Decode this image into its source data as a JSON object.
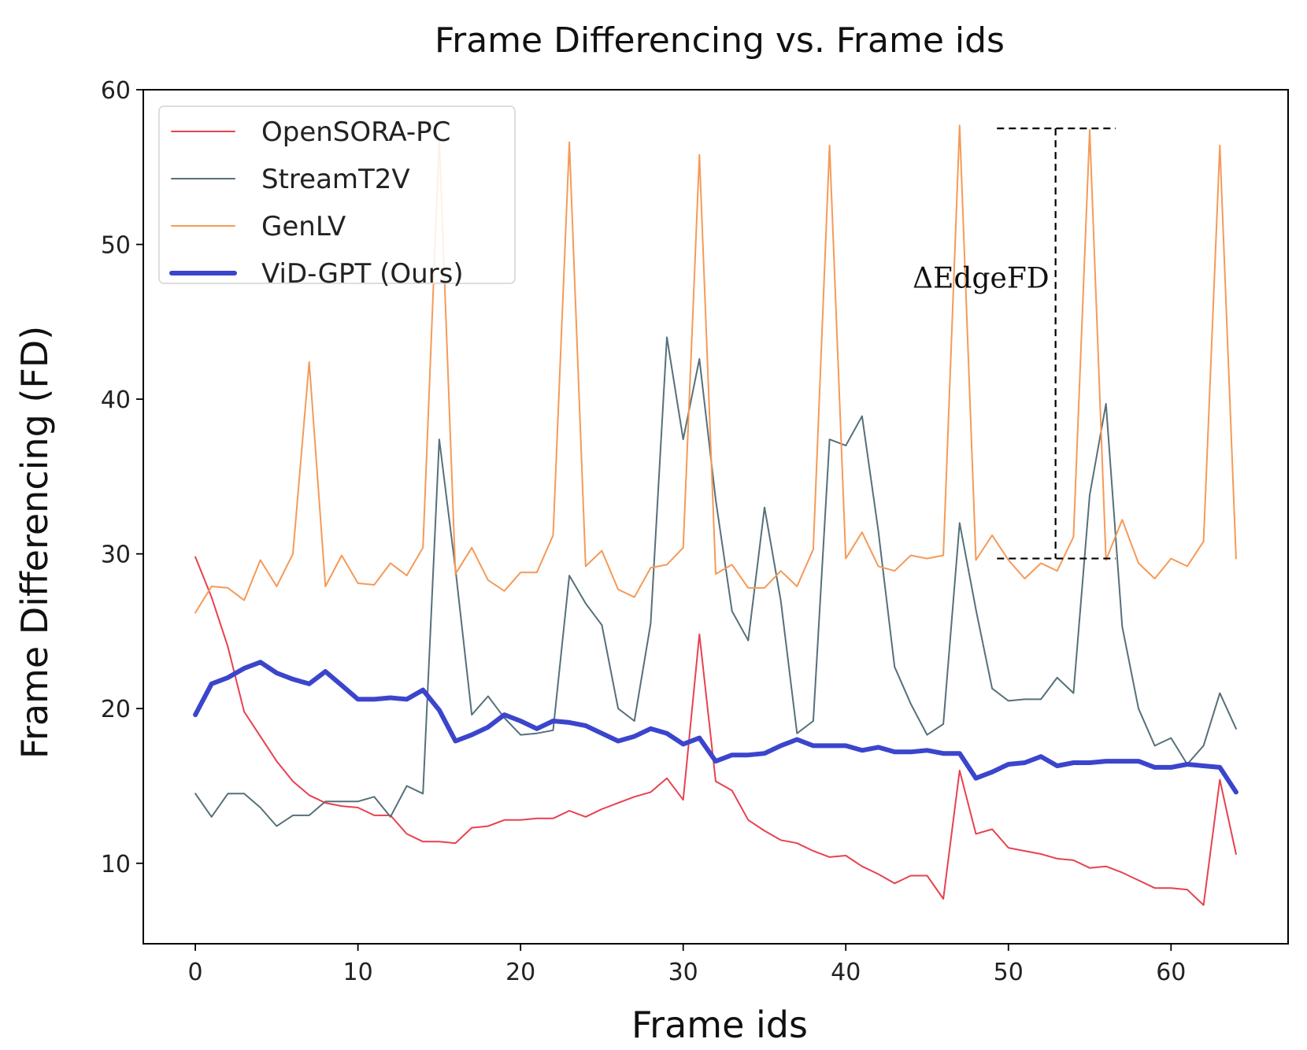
{
  "chart_data": {
    "type": "line",
    "title": "Frame Differencing vs. Frame ids",
    "xlabel": "Frame ids",
    "ylabel": "Frame Differencing (FD)",
    "xlim": [
      -3.2,
      67.2
    ],
    "ylim": [
      4.8,
      60
    ],
    "xticks": [
      0,
      10,
      20,
      30,
      40,
      50,
      60
    ],
    "yticks": [
      10,
      20,
      30,
      40,
      50,
      60
    ],
    "grid": false,
    "legend_position": "top-left",
    "series": [
      {
        "name": "OpenSORA-PC",
        "color": "#e8414f",
        "values": [
          29.8,
          27.2,
          24.0,
          19.8,
          18.2,
          16.6,
          15.3,
          14.4,
          13.9,
          13.7,
          13.6,
          13.1,
          13.1,
          11.9,
          11.4,
          11.4,
          11.3,
          12.3,
          12.4,
          12.8,
          12.8,
          12.9,
          12.9,
          13.4,
          13.0,
          13.5,
          13.9,
          14.3,
          14.6,
          15.5,
          14.1,
          24.8,
          15.3,
          14.7,
          12.8,
          12.1,
          11.5,
          11.3,
          10.8,
          10.4,
          10.5,
          9.8,
          9.3,
          8.7,
          9.2,
          9.2,
          7.7,
          16.0,
          11.9,
          12.2,
          11.0,
          10.8,
          10.6,
          10.3,
          10.2,
          9.7,
          9.8,
          9.4,
          8.9,
          8.4,
          8.4,
          8.3,
          7.3,
          15.4,
          10.6
        ]
      },
      {
        "name": "StreamT2V",
        "color": "#56707a",
        "values": [
          14.5,
          13.0,
          14.5,
          14.5,
          13.6,
          12.4,
          13.1,
          13.1,
          14.0,
          14.0,
          14.0,
          14.3,
          13.0,
          15.0,
          14.5,
          37.4,
          29.0,
          19.6,
          20.8,
          19.4,
          18.3,
          18.4,
          18.6,
          28.6,
          26.8,
          25.4,
          20.0,
          19.2,
          25.5,
          44.0,
          37.4,
          42.6,
          33.5,
          26.3,
          24.4,
          33.0,
          27.0,
          18.4,
          19.2,
          37.4,
          37.0,
          38.9,
          31.5,
          22.7,
          20.3,
          18.3,
          19.0,
          32.0,
          26.4,
          21.3,
          20.5,
          20.6,
          20.6,
          22.0,
          21.0,
          33.8,
          39.7,
          25.3,
          20.0,
          17.6,
          18.1,
          16.4,
          17.6,
          21.0,
          18.7
        ]
      },
      {
        "name": "GenLV",
        "color": "#f59a58",
        "values": [
          26.2,
          27.9,
          27.8,
          27.0,
          29.6,
          27.9,
          30.0,
          42.4,
          27.9,
          29.9,
          28.1,
          28.0,
          29.4,
          28.6,
          30.4,
          56.8,
          28.7,
          30.4,
          28.3,
          27.6,
          28.8,
          28.8,
          31.2,
          56.6,
          29.2,
          30.2,
          27.7,
          27.2,
          29.1,
          29.3,
          30.4,
          55.8,
          28.7,
          29.3,
          27.8,
          27.8,
          28.9,
          27.9,
          30.3,
          56.4,
          29.7,
          31.4,
          29.2,
          28.9,
          29.9,
          29.7,
          29.9,
          57.7,
          29.6,
          31.2,
          29.6,
          28.4,
          29.4,
          28.9,
          31.1,
          57.4,
          29.6,
          32.2,
          29.4,
          28.4,
          29.7,
          29.2,
          30.8,
          56.4,
          29.7
        ]
      },
      {
        "name": "ViD-GPT (Ours)",
        "color": "#3b45cc",
        "values": [
          19.6,
          21.6,
          22.0,
          22.6,
          23.0,
          22.3,
          21.9,
          21.6,
          22.4,
          21.5,
          20.6,
          20.6,
          20.7,
          20.6,
          21.2,
          19.9,
          17.9,
          18.3,
          18.8,
          19.6,
          19.2,
          18.7,
          19.2,
          19.1,
          18.9,
          18.4,
          17.9,
          18.2,
          18.7,
          18.4,
          17.7,
          18.1,
          16.6,
          17.0,
          17.0,
          17.1,
          17.6,
          18.0,
          17.6,
          17.6,
          17.6,
          17.3,
          17.5,
          17.2,
          17.2,
          17.3,
          17.1,
          17.1,
          15.5,
          15.9,
          16.4,
          16.5,
          16.9,
          16.3,
          16.5,
          16.5,
          16.6,
          16.6,
          16.6,
          16.2,
          16.2,
          16.4,
          16.3,
          16.2,
          14.6
        ]
      }
    ],
    "annotations": [
      {
        "text": "ΔEdgeFD",
        "peak_y": 57.5,
        "base_y": 29.7,
        "x_from": 49.3,
        "x_to": 56.6,
        "x_bracket": 52.9
      }
    ]
  }
}
